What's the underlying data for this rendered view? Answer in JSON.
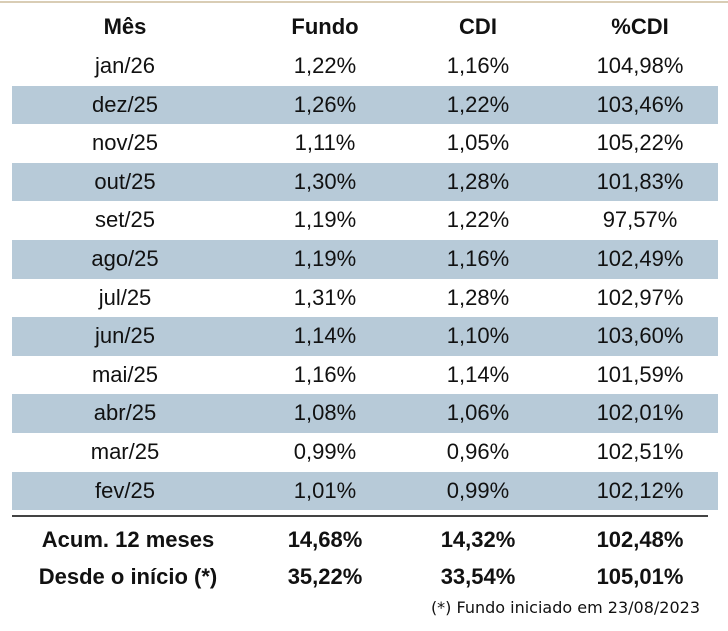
{
  "table": {
    "header": [
      "Mês",
      "Fundo",
      "CDI",
      "%CDI"
    ],
    "rows": [
      [
        "jan/26",
        "1,22%",
        "1,16%",
        "104,98%"
      ],
      [
        "dez/25",
        "1,26%",
        "1,22%",
        "103,46%"
      ],
      [
        "nov/25",
        "1,11%",
        "1,05%",
        "105,22%"
      ],
      [
        "out/25",
        "1,30%",
        "1,28%",
        "101,83%"
      ],
      [
        "set/25",
        "1,19%",
        "1,22%",
        "97,57%"
      ],
      [
        "ago/25",
        "1,19%",
        "1,16%",
        "102,49%"
      ],
      [
        "jul/25",
        "1,31%",
        "1,28%",
        "102,97%"
      ],
      [
        "jun/25",
        "1,14%",
        "1,10%",
        "103,60%"
      ],
      [
        "mai/25",
        "1,16%",
        "1,14%",
        "101,59%"
      ],
      [
        "abr/25",
        "1,08%",
        "1,06%",
        "102,01%"
      ],
      [
        "mar/25",
        "0,99%",
        "0,96%",
        "102,51%"
      ],
      [
        "fev/25",
        "1,01%",
        "0,99%",
        "102,12%"
      ]
    ],
    "summary": [
      [
        "Acum. 12 meses",
        "14,68%",
        "14,32%",
        "102,48%"
      ],
      [
        "Desde o início (*)",
        "35,22%",
        "33,54%",
        "105,01%"
      ]
    ],
    "footnote": "(*) Fundo iniciado em 23/08/2023"
  }
}
